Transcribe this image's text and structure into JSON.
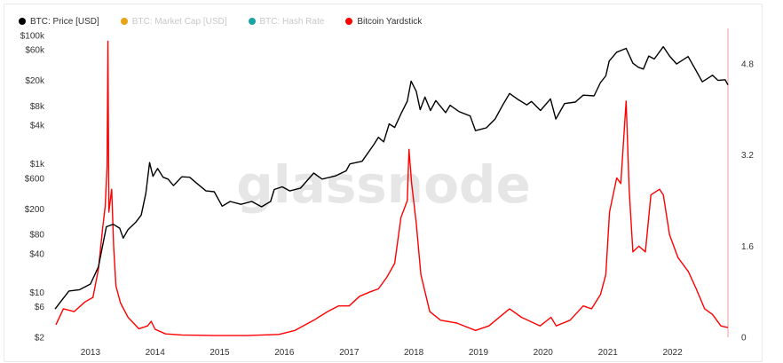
{
  "legend": [
    {
      "label": "BTC: Price [USD]",
      "color": "#000000",
      "active": true
    },
    {
      "label": "BTC: Market Cap [USD]",
      "color": "#e8a317",
      "active": false
    },
    {
      "label": "BTC: Hash Rate",
      "color": "#1aa3a3",
      "active": false
    },
    {
      "label": "Bitcoin Yardstick",
      "color": "#ff0000",
      "active": true
    }
  ],
  "watermark": "glassnode",
  "chart_data": {
    "type": "line",
    "x_tick_labels": [
      "2013",
      "2014",
      "2015",
      "2016",
      "2017",
      "2018",
      "2019",
      "2020",
      "2021",
      "2022"
    ],
    "y_left_tick_labels": [
      "$100k",
      "$60k",
      "$20k",
      "$8k",
      "$4k",
      "$1k",
      "$600",
      "$200",
      "$80",
      "$40",
      "$10",
      "$6",
      "$2"
    ],
    "y_left_scale": "log",
    "y_left_range": [
      2,
      100000
    ],
    "y_right_tick_labels": [
      "4.8",
      "3.2",
      "1.6",
      "0"
    ],
    "y_right_range": [
      0,
      5.3
    ],
    "grid": false,
    "legend_position": "top-left",
    "x_range": [
      "2012-06-15",
      "2022-11-10"
    ],
    "series": [
      {
        "name": "BTC: Price [USD]",
        "axis": "left",
        "color": "#000000",
        "points": [
          [
            "2012-06-15",
            5.5
          ],
          [
            "2012-09-01",
            10.5
          ],
          [
            "2012-11-01",
            11
          ],
          [
            "2013-01-01",
            13.5
          ],
          [
            "2013-02-15",
            25
          ],
          [
            "2013-04-01",
            105
          ],
          [
            "2013-04-20",
            110
          ],
          [
            "2013-05-10",
            115
          ],
          [
            "2013-06-15",
            100
          ],
          [
            "2013-07-05",
            70
          ],
          [
            "2013-08-01",
            95
          ],
          [
            "2013-09-15",
            125
          ],
          [
            "2013-10-15",
            160
          ],
          [
            "2013-11-10",
            350
          ],
          [
            "2013-12-01",
            1050
          ],
          [
            "2013-12-20",
            640
          ],
          [
            "2014-01-15",
            850
          ],
          [
            "2014-02-15",
            620
          ],
          [
            "2014-03-15",
            580
          ],
          [
            "2014-04-15",
            460
          ],
          [
            "2014-06-01",
            630
          ],
          [
            "2014-07-15",
            620
          ],
          [
            "2014-09-01",
            480
          ],
          [
            "2014-10-15",
            380
          ],
          [
            "2014-12-01",
            370
          ],
          [
            "2015-01-15",
            220
          ],
          [
            "2015-03-01",
            260
          ],
          [
            "2015-05-01",
            235
          ],
          [
            "2015-07-01",
            260
          ],
          [
            "2015-08-25",
            215
          ],
          [
            "2015-10-15",
            260
          ],
          [
            "2015-11-05",
            400
          ],
          [
            "2015-12-20",
            440
          ],
          [
            "2016-02-01",
            380
          ],
          [
            "2016-04-01",
            420
          ],
          [
            "2016-06-15",
            720
          ],
          [
            "2016-08-01",
            580
          ],
          [
            "2016-10-15",
            650
          ],
          [
            "2016-12-15",
            780
          ],
          [
            "2017-01-05",
            1000
          ],
          [
            "2017-03-15",
            1100
          ],
          [
            "2017-05-20",
            2000
          ],
          [
            "2017-06-15",
            2600
          ],
          [
            "2017-07-15",
            2200
          ],
          [
            "2017-08-15",
            4200
          ],
          [
            "2017-09-15",
            3700
          ],
          [
            "2017-10-20",
            6000
          ],
          [
            "2017-11-25",
            9500
          ],
          [
            "2017-12-17",
            19500
          ],
          [
            "2018-01-15",
            13500
          ],
          [
            "2018-02-06",
            7000
          ],
          [
            "2018-03-05",
            11000
          ],
          [
            "2018-04-05",
            6800
          ],
          [
            "2018-05-05",
            9700
          ],
          [
            "2018-06-30",
            6300
          ],
          [
            "2018-07-25",
            8200
          ],
          [
            "2018-09-15",
            6500
          ],
          [
            "2018-11-15",
            5600
          ],
          [
            "2018-12-15",
            3300
          ],
          [
            "2019-02-15",
            3650
          ],
          [
            "2019-04-05",
            5000
          ],
          [
            "2019-05-15",
            8000
          ],
          [
            "2019-06-26",
            12500
          ],
          [
            "2019-08-15",
            10000
          ],
          [
            "2019-10-01",
            8300
          ],
          [
            "2019-10-27",
            9400
          ],
          [
            "2019-12-17",
            6800
          ],
          [
            "2020-02-12",
            10300
          ],
          [
            "2020-03-13",
            5000
          ],
          [
            "2020-05-01",
            8700
          ],
          [
            "2020-07-01",
            9200
          ],
          [
            "2020-08-15",
            11800
          ],
          [
            "2020-10-15",
            11500
          ],
          [
            "2020-11-20",
            18500
          ],
          [
            "2020-12-20",
            23500
          ],
          [
            "2021-01-08",
            40000
          ],
          [
            "2021-02-20",
            55000
          ],
          [
            "2021-04-14",
            63000
          ],
          [
            "2021-05-22",
            37000
          ],
          [
            "2021-06-22",
            32000
          ],
          [
            "2021-07-20",
            30000
          ],
          [
            "2021-08-20",
            48000
          ],
          [
            "2021-09-20",
            43000
          ],
          [
            "2021-11-10",
            67000
          ],
          [
            "2021-12-15",
            48000
          ],
          [
            "2022-01-24",
            36000
          ],
          [
            "2022-03-30",
            47000
          ],
          [
            "2022-05-12",
            29000
          ],
          [
            "2022-06-18",
            19000
          ],
          [
            "2022-08-15",
            24000
          ],
          [
            "2022-09-15",
            20000
          ],
          [
            "2022-10-25",
            20500
          ],
          [
            "2022-11-10",
            17000
          ]
        ]
      },
      {
        "name": "Bitcoin Yardstick",
        "axis": "right",
        "color": "#ff0000",
        "points": [
          [
            "2012-06-20",
            0.22
          ],
          [
            "2012-08-01",
            0.5
          ],
          [
            "2012-10-01",
            0.45
          ],
          [
            "2012-12-01",
            0.62
          ],
          [
            "2013-01-15",
            0.7
          ],
          [
            "2013-02-15",
            1.2
          ],
          [
            "2013-03-10",
            1.9
          ],
          [
            "2013-03-25",
            2.3
          ],
          [
            "2013-04-05",
            3.0
          ],
          [
            "2013-04-10",
            5.2
          ],
          [
            "2013-04-15",
            2.2
          ],
          [
            "2013-05-01",
            2.6
          ],
          [
            "2013-05-12",
            1.6
          ],
          [
            "2013-05-25",
            0.9
          ],
          [
            "2013-06-20",
            0.6
          ],
          [
            "2013-08-01",
            0.35
          ],
          [
            "2013-10-01",
            0.15
          ],
          [
            "2013-11-20",
            0.2
          ],
          [
            "2013-12-10",
            0.28
          ],
          [
            "2014-01-01",
            0.14
          ],
          [
            "2014-03-01",
            0.06
          ],
          [
            "2014-06-01",
            0.04
          ],
          [
            "2014-12-01",
            0.03
          ],
          [
            "2015-06-01",
            0.03
          ],
          [
            "2015-12-01",
            0.05
          ],
          [
            "2016-03-01",
            0.12
          ],
          [
            "2016-06-15",
            0.3
          ],
          [
            "2016-09-01",
            0.45
          ],
          [
            "2016-11-01",
            0.55
          ],
          [
            "2017-01-01",
            0.55
          ],
          [
            "2017-03-01",
            0.72
          ],
          [
            "2017-05-01",
            0.8
          ],
          [
            "2017-06-15",
            0.85
          ],
          [
            "2017-08-01",
            1.05
          ],
          [
            "2017-09-15",
            1.3
          ],
          [
            "2017-10-20",
            2.1
          ],
          [
            "2017-11-25",
            2.4
          ],
          [
            "2017-12-05",
            3.3
          ],
          [
            "2017-12-20",
            2.7
          ],
          [
            "2018-01-15",
            2.0
          ],
          [
            "2018-02-10",
            1.1
          ],
          [
            "2018-04-01",
            0.45
          ],
          [
            "2018-06-01",
            0.3
          ],
          [
            "2018-09-01",
            0.25
          ],
          [
            "2018-12-15",
            0.12
          ],
          [
            "2019-03-01",
            0.2
          ],
          [
            "2019-06-26",
            0.5
          ],
          [
            "2019-09-01",
            0.35
          ],
          [
            "2019-12-15",
            0.2
          ],
          [
            "2020-02-15",
            0.35
          ],
          [
            "2020-03-15",
            0.2
          ],
          [
            "2020-06-01",
            0.3
          ],
          [
            "2020-08-15",
            0.55
          ],
          [
            "2020-10-01",
            0.5
          ],
          [
            "2020-11-20",
            0.75
          ],
          [
            "2020-12-20",
            1.1
          ],
          [
            "2021-01-10",
            2.2
          ],
          [
            "2021-02-20",
            2.8
          ],
          [
            "2021-03-15",
            2.7
          ],
          [
            "2021-04-14",
            4.15
          ],
          [
            "2021-05-01",
            2.6
          ],
          [
            "2021-05-22",
            1.5
          ],
          [
            "2021-06-25",
            1.6
          ],
          [
            "2021-08-01",
            1.5
          ],
          [
            "2021-09-01",
            2.5
          ],
          [
            "2021-10-20",
            2.6
          ],
          [
            "2021-11-10",
            2.5
          ],
          [
            "2021-12-15",
            1.8
          ],
          [
            "2022-02-01",
            1.4
          ],
          [
            "2022-04-01",
            1.15
          ],
          [
            "2022-05-15",
            0.85
          ],
          [
            "2022-07-01",
            0.5
          ],
          [
            "2022-08-15",
            0.4
          ],
          [
            "2022-10-01",
            0.2
          ],
          [
            "2022-11-10",
            0.17
          ]
        ]
      }
    ]
  }
}
